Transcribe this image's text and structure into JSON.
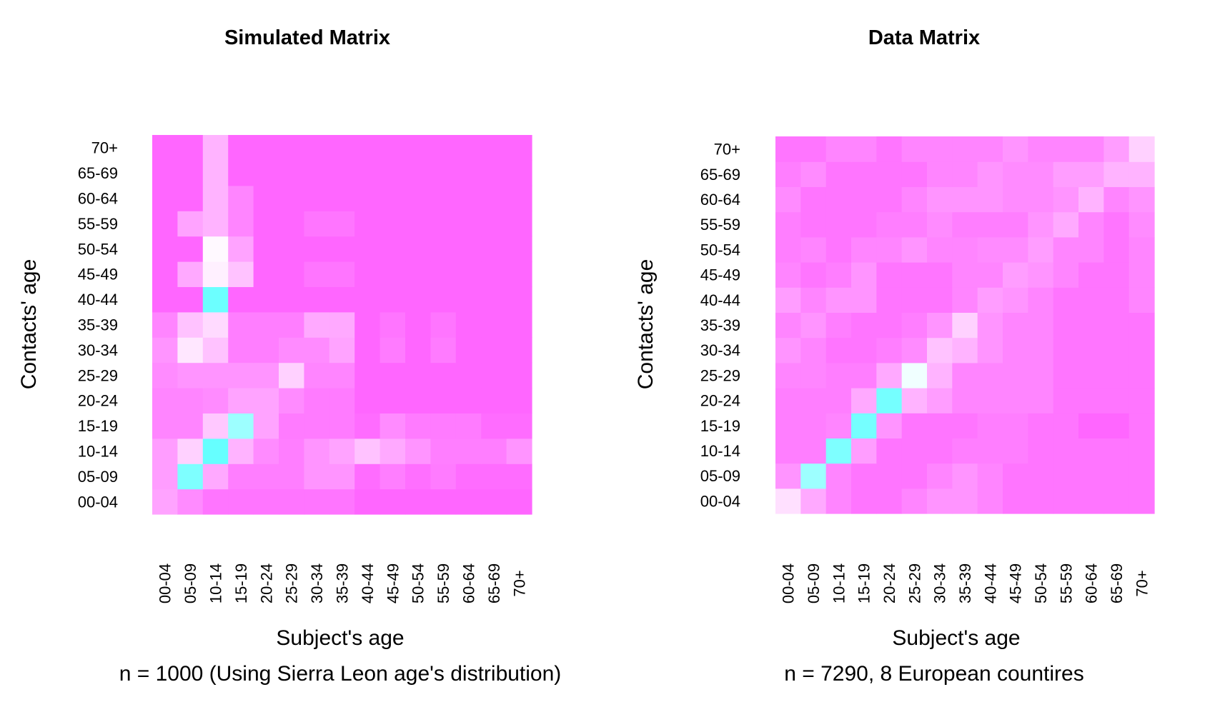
{
  "chart_data": [
    {
      "type": "heatmap",
      "title": "Simulated Matrix",
      "xlabel": "Subject's age",
      "ylabel": "Contacts' age",
      "subtitle": "n = 1000 (Using Sierra Leon age's distribution)",
      "x_categories": [
        "00-04",
        "05-09",
        "10-14",
        "15-19",
        "20-24",
        "25-29",
        "30-34",
        "35-39",
        "40-44",
        "45-49",
        "50-54",
        "55-59",
        "60-64",
        "65-69",
        "70+"
      ],
      "y_categories": [
        "00-04",
        "05-09",
        "10-14",
        "15-19",
        "20-24",
        "25-29",
        "30-34",
        "35-39",
        "40-44",
        "45-49",
        "50-54",
        "55-59",
        "60-64",
        "65-69",
        "70+"
      ],
      "values": [
        [
          0.2,
          0.12,
          0.05,
          0.05,
          0.05,
          0.05,
          0.05,
          0.05,
          0.0,
          0.0,
          0.0,
          0.0,
          0.0,
          0.0,
          0.0
        ],
        [
          0.18,
          0.92,
          0.22,
          0.08,
          0.08,
          0.08,
          0.15,
          0.15,
          0.02,
          0.08,
          0.03,
          0.07,
          0.02,
          0.02,
          0.02
        ],
        [
          0.18,
          0.35,
          1.0,
          0.25,
          0.12,
          0.08,
          0.15,
          0.2,
          0.3,
          0.22,
          0.15,
          0.08,
          0.08,
          0.08,
          0.15
        ],
        [
          0.1,
          0.1,
          0.32,
          0.82,
          0.2,
          0.07,
          0.07,
          0.07,
          0.02,
          0.12,
          0.07,
          0.07,
          0.07,
          0.02,
          0.02
        ],
        [
          0.1,
          0.1,
          0.12,
          0.2,
          0.2,
          0.12,
          0.07,
          0.07,
          0.0,
          0.0,
          0.0,
          0.0,
          0.0,
          0.0,
          0.0
        ],
        [
          0.12,
          0.15,
          0.15,
          0.15,
          0.15,
          0.35,
          0.1,
          0.1,
          0.0,
          0.0,
          0.0,
          0.0,
          0.0,
          0.0,
          0.0
        ],
        [
          0.15,
          0.42,
          0.3,
          0.08,
          0.08,
          0.12,
          0.12,
          0.2,
          0.0,
          0.07,
          0.0,
          0.07,
          0.0,
          0.0,
          0.0
        ],
        [
          0.1,
          0.3,
          0.38,
          0.08,
          0.08,
          0.08,
          0.22,
          0.22,
          0.0,
          0.05,
          0.0,
          0.05,
          0.0,
          0.0,
          0.0
        ],
        [
          0.0,
          0.0,
          0.98,
          0.0,
          0.0,
          0.0,
          0.0,
          0.0,
          0.0,
          0.0,
          0.0,
          0.0,
          0.0,
          0.0,
          0.0
        ],
        [
          0.0,
          0.22,
          0.45,
          0.3,
          0.0,
          0.0,
          0.05,
          0.05,
          0.0,
          0.0,
          0.0,
          0.0,
          0.0,
          0.0,
          0.0
        ],
        [
          0.0,
          0.0,
          0.48,
          0.2,
          0.0,
          0.0,
          0.0,
          0.0,
          0.0,
          0.0,
          0.0,
          0.0,
          0.0,
          0.0,
          0.0
        ],
        [
          0.0,
          0.2,
          0.25,
          0.1,
          0.0,
          0.0,
          0.05,
          0.05,
          0.0,
          0.0,
          0.0,
          0.0,
          0.0,
          0.0,
          0.0
        ],
        [
          0.0,
          0.0,
          0.25,
          0.1,
          0.0,
          0.0,
          0.0,
          0.0,
          0.0,
          0.0,
          0.0,
          0.0,
          0.0,
          0.0,
          0.0
        ],
        [
          0.0,
          0.0,
          0.25,
          0.0,
          0.0,
          0.0,
          0.0,
          0.0,
          0.0,
          0.0,
          0.0,
          0.0,
          0.0,
          0.0,
          0.0
        ],
        [
          0.0,
          0.0,
          0.25,
          0.0,
          0.0,
          0.0,
          0.0,
          0.0,
          0.0,
          0.0,
          0.0,
          0.0,
          0.0,
          0.0,
          0.0
        ]
      ],
      "color_low": "#ff66ff",
      "color_mid": "#ffffff",
      "color_high": "#66ffff"
    },
    {
      "type": "heatmap",
      "title": "Data Matrix",
      "xlabel": "Subject's age",
      "ylabel": "Contacts' age",
      "subtitle": "n = 7290, 8 European countires",
      "x_categories": [
        "00-04",
        "05-09",
        "10-14",
        "15-19",
        "20-24",
        "25-29",
        "30-34",
        "35-39",
        "40-44",
        "45-49",
        "50-54",
        "55-59",
        "60-64",
        "65-69",
        "70+"
      ],
      "y_categories": [
        "00-04",
        "05-09",
        "10-14",
        "15-19",
        "20-24",
        "25-29",
        "30-34",
        "35-39",
        "40-44",
        "45-49",
        "50-54",
        "55-59",
        "60-64",
        "65-69",
        "70+"
      ],
      "values": [
        [
          0.4,
          0.22,
          0.1,
          0.05,
          0.05,
          0.1,
          0.15,
          0.15,
          0.1,
          0.05,
          0.05,
          0.05,
          0.05,
          0.05,
          0.05
        ],
        [
          0.15,
          0.82,
          0.1,
          0.05,
          0.05,
          0.05,
          0.1,
          0.15,
          0.1,
          0.05,
          0.05,
          0.05,
          0.05,
          0.05,
          0.05
        ],
        [
          0.08,
          0.08,
          0.92,
          0.18,
          0.05,
          0.05,
          0.05,
          0.08,
          0.08,
          0.08,
          0.05,
          0.05,
          0.05,
          0.05,
          0.05
        ],
        [
          0.08,
          0.08,
          0.1,
          0.95,
          0.15,
          0.05,
          0.05,
          0.05,
          0.08,
          0.08,
          0.05,
          0.05,
          0.0,
          0.0,
          0.05
        ],
        [
          0.08,
          0.08,
          0.08,
          0.22,
          0.95,
          0.25,
          0.18,
          0.1,
          0.1,
          0.1,
          0.1,
          0.05,
          0.05,
          0.05,
          0.05
        ],
        [
          0.1,
          0.1,
          0.08,
          0.08,
          0.22,
          0.55,
          0.25,
          0.1,
          0.1,
          0.1,
          0.1,
          0.05,
          0.05,
          0.05,
          0.05
        ],
        [
          0.15,
          0.1,
          0.05,
          0.05,
          0.08,
          0.12,
          0.3,
          0.25,
          0.15,
          0.1,
          0.1,
          0.05,
          0.05,
          0.05,
          0.05
        ],
        [
          0.1,
          0.15,
          0.08,
          0.05,
          0.05,
          0.08,
          0.15,
          0.35,
          0.15,
          0.1,
          0.1,
          0.05,
          0.05,
          0.05,
          0.05
        ],
        [
          0.18,
          0.1,
          0.15,
          0.15,
          0.05,
          0.05,
          0.05,
          0.1,
          0.18,
          0.15,
          0.1,
          0.05,
          0.05,
          0.05,
          0.1
        ],
        [
          0.1,
          0.05,
          0.08,
          0.15,
          0.05,
          0.05,
          0.05,
          0.1,
          0.1,
          0.18,
          0.15,
          0.1,
          0.05,
          0.05,
          0.1
        ],
        [
          0.08,
          0.1,
          0.05,
          0.1,
          0.1,
          0.15,
          0.1,
          0.1,
          0.12,
          0.12,
          0.18,
          0.1,
          0.1,
          0.05,
          0.1
        ],
        [
          0.08,
          0.05,
          0.05,
          0.05,
          0.08,
          0.08,
          0.12,
          0.08,
          0.08,
          0.08,
          0.15,
          0.22,
          0.1,
          0.05,
          0.12
        ],
        [
          0.12,
          0.05,
          0.05,
          0.05,
          0.05,
          0.1,
          0.15,
          0.15,
          0.15,
          0.12,
          0.12,
          0.15,
          0.25,
          0.1,
          0.15
        ],
        [
          0.08,
          0.12,
          0.05,
          0.05,
          0.05,
          0.05,
          0.1,
          0.1,
          0.15,
          0.12,
          0.12,
          0.18,
          0.18,
          0.25,
          0.25
        ],
        [
          0.05,
          0.05,
          0.1,
          0.1,
          0.05,
          0.1,
          0.1,
          0.1,
          0.1,
          0.15,
          0.1,
          0.1,
          0.1,
          0.18,
          0.35
        ]
      ],
      "color_low": "#ff66ff",
      "color_mid": "#ffffff",
      "color_high": "#66ffff"
    }
  ]
}
